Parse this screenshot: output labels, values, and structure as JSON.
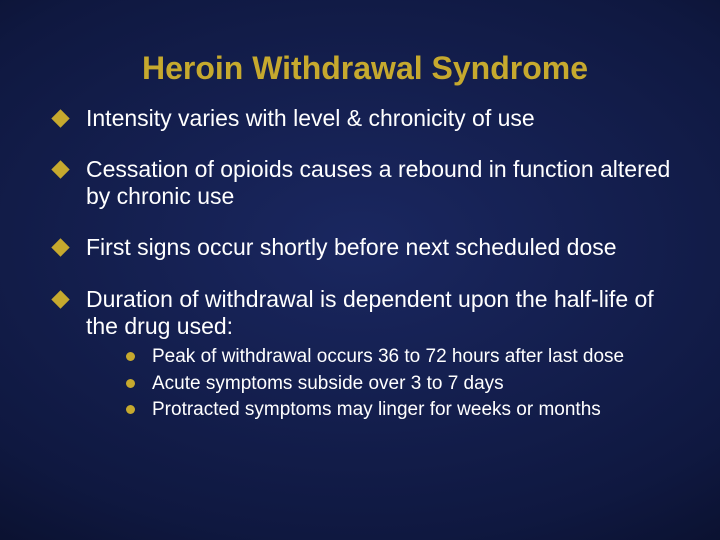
{
  "slide": {
    "title": "Heroin Withdrawal Syndrome",
    "title_color": "#c6a92e",
    "title_fontsize": 32,
    "title_weight": 900,
    "background": {
      "type": "radial-gradient",
      "inner": "#1a2760",
      "mid": "#0f1840",
      "outer": "#020410"
    },
    "body_color": "#ffffff",
    "body_fontsize": 23,
    "sub_fontsize": 19,
    "bullet_color": "#c6a92e",
    "bullets": [
      "Intensity varies with level & chronicity of use",
      "Cessation of opioids causes a rebound in function altered by chronic use",
      "First signs occur shortly before next scheduled dose",
      "Duration of withdrawal is dependent upon the half-life of the drug used:"
    ],
    "sub_bullets": [
      "Peak of withdrawal occurs 36 to 72 hours after last dose",
      "Acute symptoms subside over 3 to 7 days",
      "Protracted symptoms may linger for weeks or months"
    ]
  }
}
